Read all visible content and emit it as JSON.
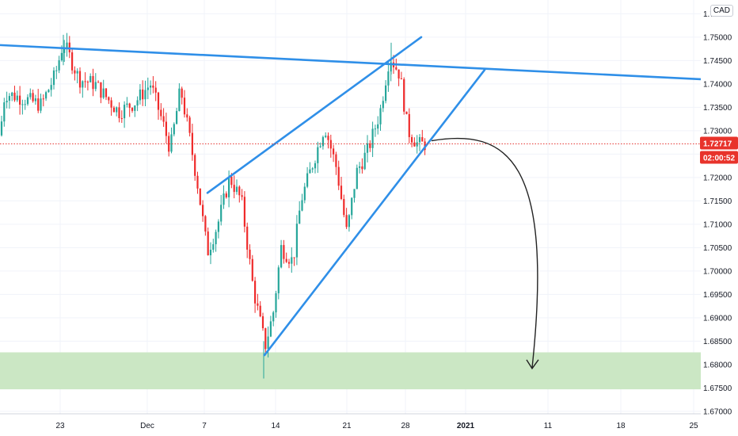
{
  "currency_label": "CAD",
  "colors": {
    "up": "#26a69a",
    "down": "#ef2b2b",
    "trendline": "#2f8fe8",
    "support_zone": "#c8e6c1",
    "price_line": "#e53935",
    "tag_bg": "#e8332b",
    "arrow": "#222222"
  },
  "price_tag": {
    "price": "1.72717",
    "countdown": "02:00:52"
  },
  "chart_data": {
    "type": "candlestick",
    "y_ticks": [
      "1.67000",
      "1.67500",
      "1.68000",
      "1.68500",
      "1.69000",
      "1.69500",
      "1.70000",
      "1.70500",
      "1.71000",
      "1.71500",
      "1.72000",
      "1.72500",
      "1.73000",
      "1.73500",
      "1.74000",
      "1.74500",
      "1.75000",
      "1.75500"
    ],
    "x_ticks": [
      "23",
      "Dec",
      "7",
      "14",
      "21",
      "28",
      "2021",
      "11",
      "18",
      "25"
    ],
    "ylim": [
      1.6698,
      1.7565
    ],
    "current_price": 1.72717,
    "support_zone": [
      1.6747,
      1.6826
    ],
    "resistance_line": [
      [
        "Nov 19",
        1.7483
      ],
      [
        "Jan 31",
        1.741
      ]
    ],
    "rising_wedge_upper": [
      [
        "Dec 7",
        1.7167
      ],
      [
        "Dec 29",
        1.75
      ]
    ],
    "rising_wedge_lower": [
      [
        "Dec 11",
        1.682
      ],
      [
        "Jan 3",
        1.743
      ]
    ],
    "projection_target": 1.68
  }
}
